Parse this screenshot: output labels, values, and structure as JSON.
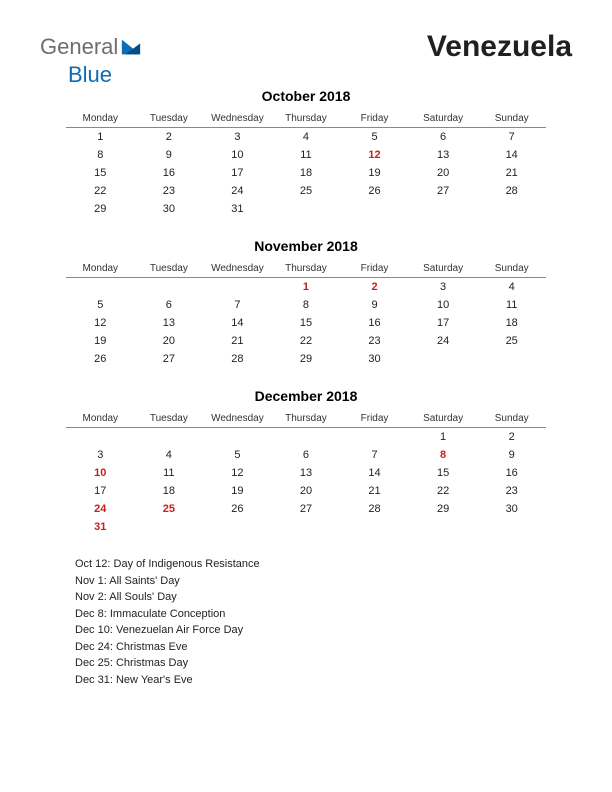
{
  "header": {
    "logo_general": "General",
    "logo_blue": "Blue",
    "country": "Venezuela"
  },
  "day_headers": [
    "Monday",
    "Tuesday",
    "Wednesday",
    "Thursday",
    "Friday",
    "Saturday",
    "Sunday"
  ],
  "months": [
    {
      "title": "October 2018",
      "weeks": [
        [
          {
            "d": "1"
          },
          {
            "d": "2"
          },
          {
            "d": "3"
          },
          {
            "d": "4"
          },
          {
            "d": "5"
          },
          {
            "d": "6"
          },
          {
            "d": "7"
          }
        ],
        [
          {
            "d": "8"
          },
          {
            "d": "9"
          },
          {
            "d": "10"
          },
          {
            "d": "11"
          },
          {
            "d": "12",
            "h": true
          },
          {
            "d": "13"
          },
          {
            "d": "14"
          }
        ],
        [
          {
            "d": "15"
          },
          {
            "d": "16"
          },
          {
            "d": "17"
          },
          {
            "d": "18"
          },
          {
            "d": "19"
          },
          {
            "d": "20"
          },
          {
            "d": "21"
          }
        ],
        [
          {
            "d": "22"
          },
          {
            "d": "23"
          },
          {
            "d": "24"
          },
          {
            "d": "25"
          },
          {
            "d": "26"
          },
          {
            "d": "27"
          },
          {
            "d": "28"
          }
        ],
        [
          {
            "d": "29"
          },
          {
            "d": "30"
          },
          {
            "d": "31"
          },
          {
            "d": ""
          },
          {
            "d": ""
          },
          {
            "d": ""
          },
          {
            "d": ""
          }
        ]
      ]
    },
    {
      "title": "November 2018",
      "weeks": [
        [
          {
            "d": ""
          },
          {
            "d": ""
          },
          {
            "d": ""
          },
          {
            "d": "1",
            "h": true
          },
          {
            "d": "2",
            "h": true
          },
          {
            "d": "3"
          },
          {
            "d": "4"
          }
        ],
        [
          {
            "d": "5"
          },
          {
            "d": "6"
          },
          {
            "d": "7"
          },
          {
            "d": "8"
          },
          {
            "d": "9"
          },
          {
            "d": "10"
          },
          {
            "d": "11"
          }
        ],
        [
          {
            "d": "12"
          },
          {
            "d": "13"
          },
          {
            "d": "14"
          },
          {
            "d": "15"
          },
          {
            "d": "16"
          },
          {
            "d": "17"
          },
          {
            "d": "18"
          }
        ],
        [
          {
            "d": "19"
          },
          {
            "d": "20"
          },
          {
            "d": "21"
          },
          {
            "d": "22"
          },
          {
            "d": "23"
          },
          {
            "d": "24"
          },
          {
            "d": "25"
          }
        ],
        [
          {
            "d": "26"
          },
          {
            "d": "27"
          },
          {
            "d": "28"
          },
          {
            "d": "29"
          },
          {
            "d": "30"
          },
          {
            "d": ""
          },
          {
            "d": ""
          }
        ]
      ]
    },
    {
      "title": "December 2018",
      "weeks": [
        [
          {
            "d": ""
          },
          {
            "d": ""
          },
          {
            "d": ""
          },
          {
            "d": ""
          },
          {
            "d": ""
          },
          {
            "d": "1"
          },
          {
            "d": "2"
          }
        ],
        [
          {
            "d": "3"
          },
          {
            "d": "4"
          },
          {
            "d": "5"
          },
          {
            "d": "6"
          },
          {
            "d": "7"
          },
          {
            "d": "8",
            "h": true
          },
          {
            "d": "9"
          }
        ],
        [
          {
            "d": "10",
            "h": true
          },
          {
            "d": "11"
          },
          {
            "d": "12"
          },
          {
            "d": "13"
          },
          {
            "d": "14"
          },
          {
            "d": "15"
          },
          {
            "d": "16"
          }
        ],
        [
          {
            "d": "17"
          },
          {
            "d": "18"
          },
          {
            "d": "19"
          },
          {
            "d": "20"
          },
          {
            "d": "21"
          },
          {
            "d": "22"
          },
          {
            "d": "23"
          }
        ],
        [
          {
            "d": "24",
            "h": true
          },
          {
            "d": "25",
            "h": true
          },
          {
            "d": "26"
          },
          {
            "d": "27"
          },
          {
            "d": "28"
          },
          {
            "d": "29"
          },
          {
            "d": "30"
          }
        ],
        [
          {
            "d": "31",
            "h": true
          },
          {
            "d": ""
          },
          {
            "d": ""
          },
          {
            "d": ""
          },
          {
            "d": ""
          },
          {
            "d": ""
          },
          {
            "d": ""
          }
        ]
      ]
    }
  ],
  "holidays": [
    "Oct 12: Day of Indigenous Resistance",
    "Nov 1: All Saints' Day",
    "Nov 2: All Souls' Day",
    "Dec 8: Immaculate Conception",
    "Dec 10: Venezuelan Air Force Day",
    "Dec 24: Christmas Eve",
    "Dec 25: Christmas Day",
    "Dec 31: New Year's Eve"
  ],
  "colors": {
    "holiday_text": "#c81e1e",
    "text": "#222222",
    "logo_grey": "#6d6e71",
    "logo_blue": "#0b6db7"
  }
}
